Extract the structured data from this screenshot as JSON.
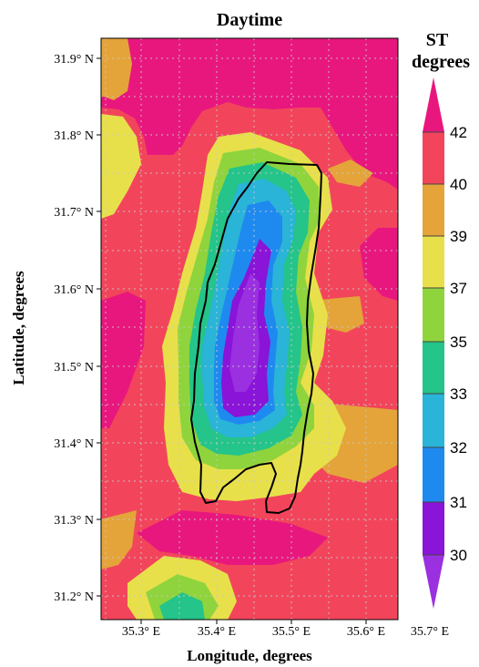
{
  "title": "Daytime",
  "colorbar": {
    "title_line1": "ST",
    "title_line2": "degrees",
    "levels": [
      "42",
      "40",
      "39",
      "37",
      "35",
      "33",
      "32",
      "31",
      "30"
    ],
    "colors": {
      "above_42": "#E8177E",
      "40_42": "#F2455B",
      "39_40": "#E4A43A",
      "37_39": "#E8E04A",
      "35_37": "#8FD43C",
      "33_35": "#24C48A",
      "32_33": "#2AB4D8",
      "31_32": "#1E8AF0",
      "30_31": "#8A14D8",
      "below_30": "#9B30E0"
    }
  },
  "axes": {
    "xlabel": "Longitude, degrees",
    "ylabel": "Latitude, degrees",
    "x_ticks": [
      "35.3° E",
      "35.4° E",
      "35.5° E",
      "35.6° E",
      "35.7° E"
    ],
    "y_ticks": [
      "31.9° N",
      "31.8° N",
      "31.7° N",
      "31.6° N",
      "31.5° N",
      "31.4° N",
      "31.3° N",
      "31.2° N"
    ],
    "xlim": [
      35.24,
      35.7
    ],
    "ylim": [
      31.17,
      31.95
    ]
  },
  "map": {
    "feature": "lake-outline",
    "grid": "dotted"
  }
}
